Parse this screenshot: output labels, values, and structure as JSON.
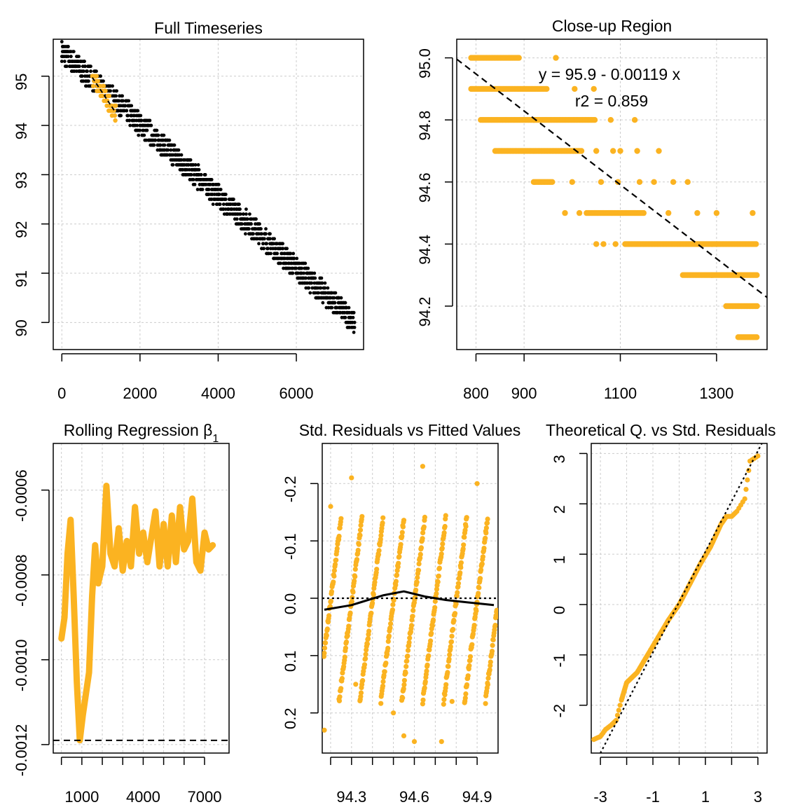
{
  "colors": {
    "highlight": "#FBB321",
    "points": "#000000",
    "grid": "#CCCCCC",
    "fit_line": "#000000"
  },
  "chart_data": [
    {
      "type": "scatter",
      "title": "Full Timeseries",
      "xlabel": "",
      "ylabel": "",
      "xlim": [
        -220,
        7720
      ],
      "ylim": [
        89.45,
        95.75
      ],
      "xticks": [
        0,
        2000,
        4000,
        6000
      ],
      "yticks": [
        90,
        91,
        92,
        93,
        94,
        95
      ],
      "grid": true,
      "series": [
        {
          "color": "#000000",
          "trend": {
            "x": [
              0,
              7500
            ],
            "y": [
              95.5,
              90.0
            ]
          },
          "x_range": [
            0,
            7500
          ]
        },
        {
          "color": "#FBB321",
          "x_range": [
            780,
            1380
          ],
          "y_range": [
            94.1,
            95.0
          ],
          "highlight": true
        }
      ]
    },
    {
      "type": "scatter",
      "title": "Close-up Region",
      "xlabel": "",
      "ylabel": "",
      "xlim": [
        760,
        1405
      ],
      "ylim": [
        94.06,
        95.06
      ],
      "xticks": [
        800,
        900,
        1100,
        1300
      ],
      "yticks": [
        94.2,
        94.4,
        94.6,
        94.8,
        95.0
      ],
      "grid": true,
      "annotations": [
        "y = 95.9 - 0.00119 x",
        "r2 = 0.859"
      ],
      "fit_line": {
        "intercept": 95.9,
        "slope": -0.00119,
        "style": "dashed"
      },
      "bands": [
        {
          "y": 95.0,
          "x": [
            790,
            890
          ],
          "extra": [
            966
          ]
        },
        {
          "y": 94.9,
          "x": [
            790,
            950
          ],
          "extra": [
            1005,
            1045
          ]
        },
        {
          "y": 94.8,
          "x": [
            810,
            1050
          ],
          "extra": [
            1080,
            1130
          ]
        },
        {
          "y": 94.7,
          "x": [
            840,
            1020
          ],
          "extra": [
            1050,
            1085,
            1100,
            1135,
            1180
          ]
        },
        {
          "y": 94.6,
          "x": [
            920,
            960
          ],
          "extra": [
            1000,
            1060,
            1095,
            1140,
            1170,
            1210,
            1240
          ]
        },
        {
          "y": 94.5,
          "x": [
            1030,
            1150
          ],
          "extra": [
            985,
            1015,
            1200,
            1260,
            1300,
            1375
          ]
        },
        {
          "y": 94.4,
          "x": [
            1110,
            1385
          ],
          "extra": [
            1050,
            1065,
            1090
          ]
        },
        {
          "y": 94.3,
          "x": [
            1230,
            1385
          ],
          "extra": [
            1290
          ]
        },
        {
          "y": 94.2,
          "x": [
            1320,
            1385
          ],
          "extra": []
        },
        {
          "y": 94.1,
          "x": [
            1345,
            1385
          ],
          "extra": []
        }
      ]
    },
    {
      "type": "line",
      "title": "Rolling Regression β",
      "title_subscript": "1",
      "xlabel": "",
      "ylabel": "",
      "xlim": [
        -400,
        8200
      ],
      "ylim": [
        -0.00122,
        -0.00049
      ],
      "xticks": [
        1000,
        4000,
        7000
      ],
      "xticks_minor": [
        0,
        1000,
        2000,
        3000,
        4000,
        5000,
        6000,
        7000
      ],
      "yticks": [
        -0.0006,
        -0.0008,
        -0.001,
        -0.0012
      ],
      "ytick_labels": [
        "-0.0006",
        "-0.0008",
        "-0.0010",
        "-0.0012"
      ],
      "grid": true,
      "reference_line": {
        "y": -0.00119,
        "style": "dashed"
      },
      "series": [
        {
          "color": "#FBB321",
          "x": [
            0,
            150,
            300,
            450,
            600,
            750,
            900,
            1050,
            1200,
            1350,
            1500,
            1650,
            1800,
            2000,
            2200,
            2400,
            2600,
            2800,
            3000,
            3200,
            3400,
            3600,
            3800,
            4000,
            4200,
            4400,
            4600,
            4800,
            5000,
            5200,
            5400,
            5600,
            5800,
            6000,
            6200,
            6400,
            6600,
            6800,
            7000,
            7200,
            7400
          ],
          "y": [
            -0.00095,
            -0.0009,
            -0.00075,
            -0.00067,
            -0.00085,
            -0.00105,
            -0.00119,
            -0.00113,
            -0.00108,
            -0.00103,
            -0.00085,
            -0.00073,
            -0.00082,
            -0.00078,
            -0.00059,
            -0.00075,
            -0.00078,
            -0.00069,
            -0.00079,
            -0.00072,
            -0.00078,
            -0.00064,
            -0.00075,
            -0.0007,
            -0.00077,
            -0.00071,
            -0.00065,
            -0.00078,
            -0.00068,
            -0.00078,
            -0.00066,
            -0.00077,
            -0.00064,
            -0.00074,
            -0.00072,
            -0.00062,
            -0.00077,
            -0.00079,
            -0.0007,
            -0.00074,
            -0.00073
          ]
        }
      ]
    },
    {
      "type": "scatter",
      "title": "Std. Residuals vs Fitted Values",
      "xlabel": "",
      "ylabel": "",
      "xlim": [
        94.16,
        95.0
      ],
      "ylim": [
        0.27,
        -0.27
      ],
      "y_reversed": true,
      "xticks": [
        94.3,
        94.6,
        94.9
      ],
      "xticks_minor": [
        94.2,
        94.3,
        94.4,
        94.5,
        94.6,
        94.7,
        94.8,
        94.9
      ],
      "yticks": [
        -0.2,
        -0.1,
        0.0,
        0.1,
        0.2
      ],
      "ytick_labels": [
        "-0.2",
        "-0.1",
        "0.0",
        "0.1",
        "0.2"
      ],
      "grid": true,
      "reference_line": {
        "y": 0,
        "style": "dotted"
      },
      "smooth": {
        "x": [
          94.17,
          94.3,
          94.45,
          94.55,
          94.65,
          94.75,
          94.85,
          94.98
        ],
        "y": [
          0.02,
          0.012,
          -0.005,
          -0.012,
          -0.003,
          0.003,
          0.007,
          0.012
        ]
      },
      "series": [
        {
          "color": "#FBB321"
        }
      ]
    },
    {
      "type": "scatter",
      "title": "Theoretical Q. vs Std. Residuals",
      "xlabel": "",
      "ylabel": "",
      "xlim": [
        -3.35,
        3.35
      ],
      "ylim": [
        -2.95,
        3.2
      ],
      "xticks": [
        -3,
        -1,
        1,
        3
      ],
      "xticks_minor": [
        -3,
        -2,
        -1,
        0,
        1,
        2,
        3
      ],
      "yticks": [
        -2,
        -1,
        0,
        1,
        2,
        3
      ],
      "grid": true,
      "reference_line": {
        "type": "qq",
        "style": "dotted",
        "slope": 1.0,
        "intercept": 0.05
      },
      "series": [
        {
          "color": "#FBB321",
          "x": [
            -3.25,
            -3.0,
            -2.8,
            -2.6,
            -2.4,
            -2.2,
            -2.0,
            -1.6,
            -1.2,
            -0.8,
            -0.4,
            0.0,
            0.4,
            0.8,
            1.2,
            1.6,
            1.8,
            2.0,
            2.2,
            2.5,
            2.7,
            3.0
          ],
          "y": [
            -2.68,
            -2.62,
            -2.48,
            -2.4,
            -2.3,
            -1.9,
            -1.55,
            -1.35,
            -1.0,
            -0.65,
            -0.3,
            0.0,
            0.4,
            0.8,
            1.15,
            1.6,
            1.75,
            1.75,
            1.85,
            2.1,
            2.85,
            2.95
          ]
        }
      ]
    }
  ]
}
